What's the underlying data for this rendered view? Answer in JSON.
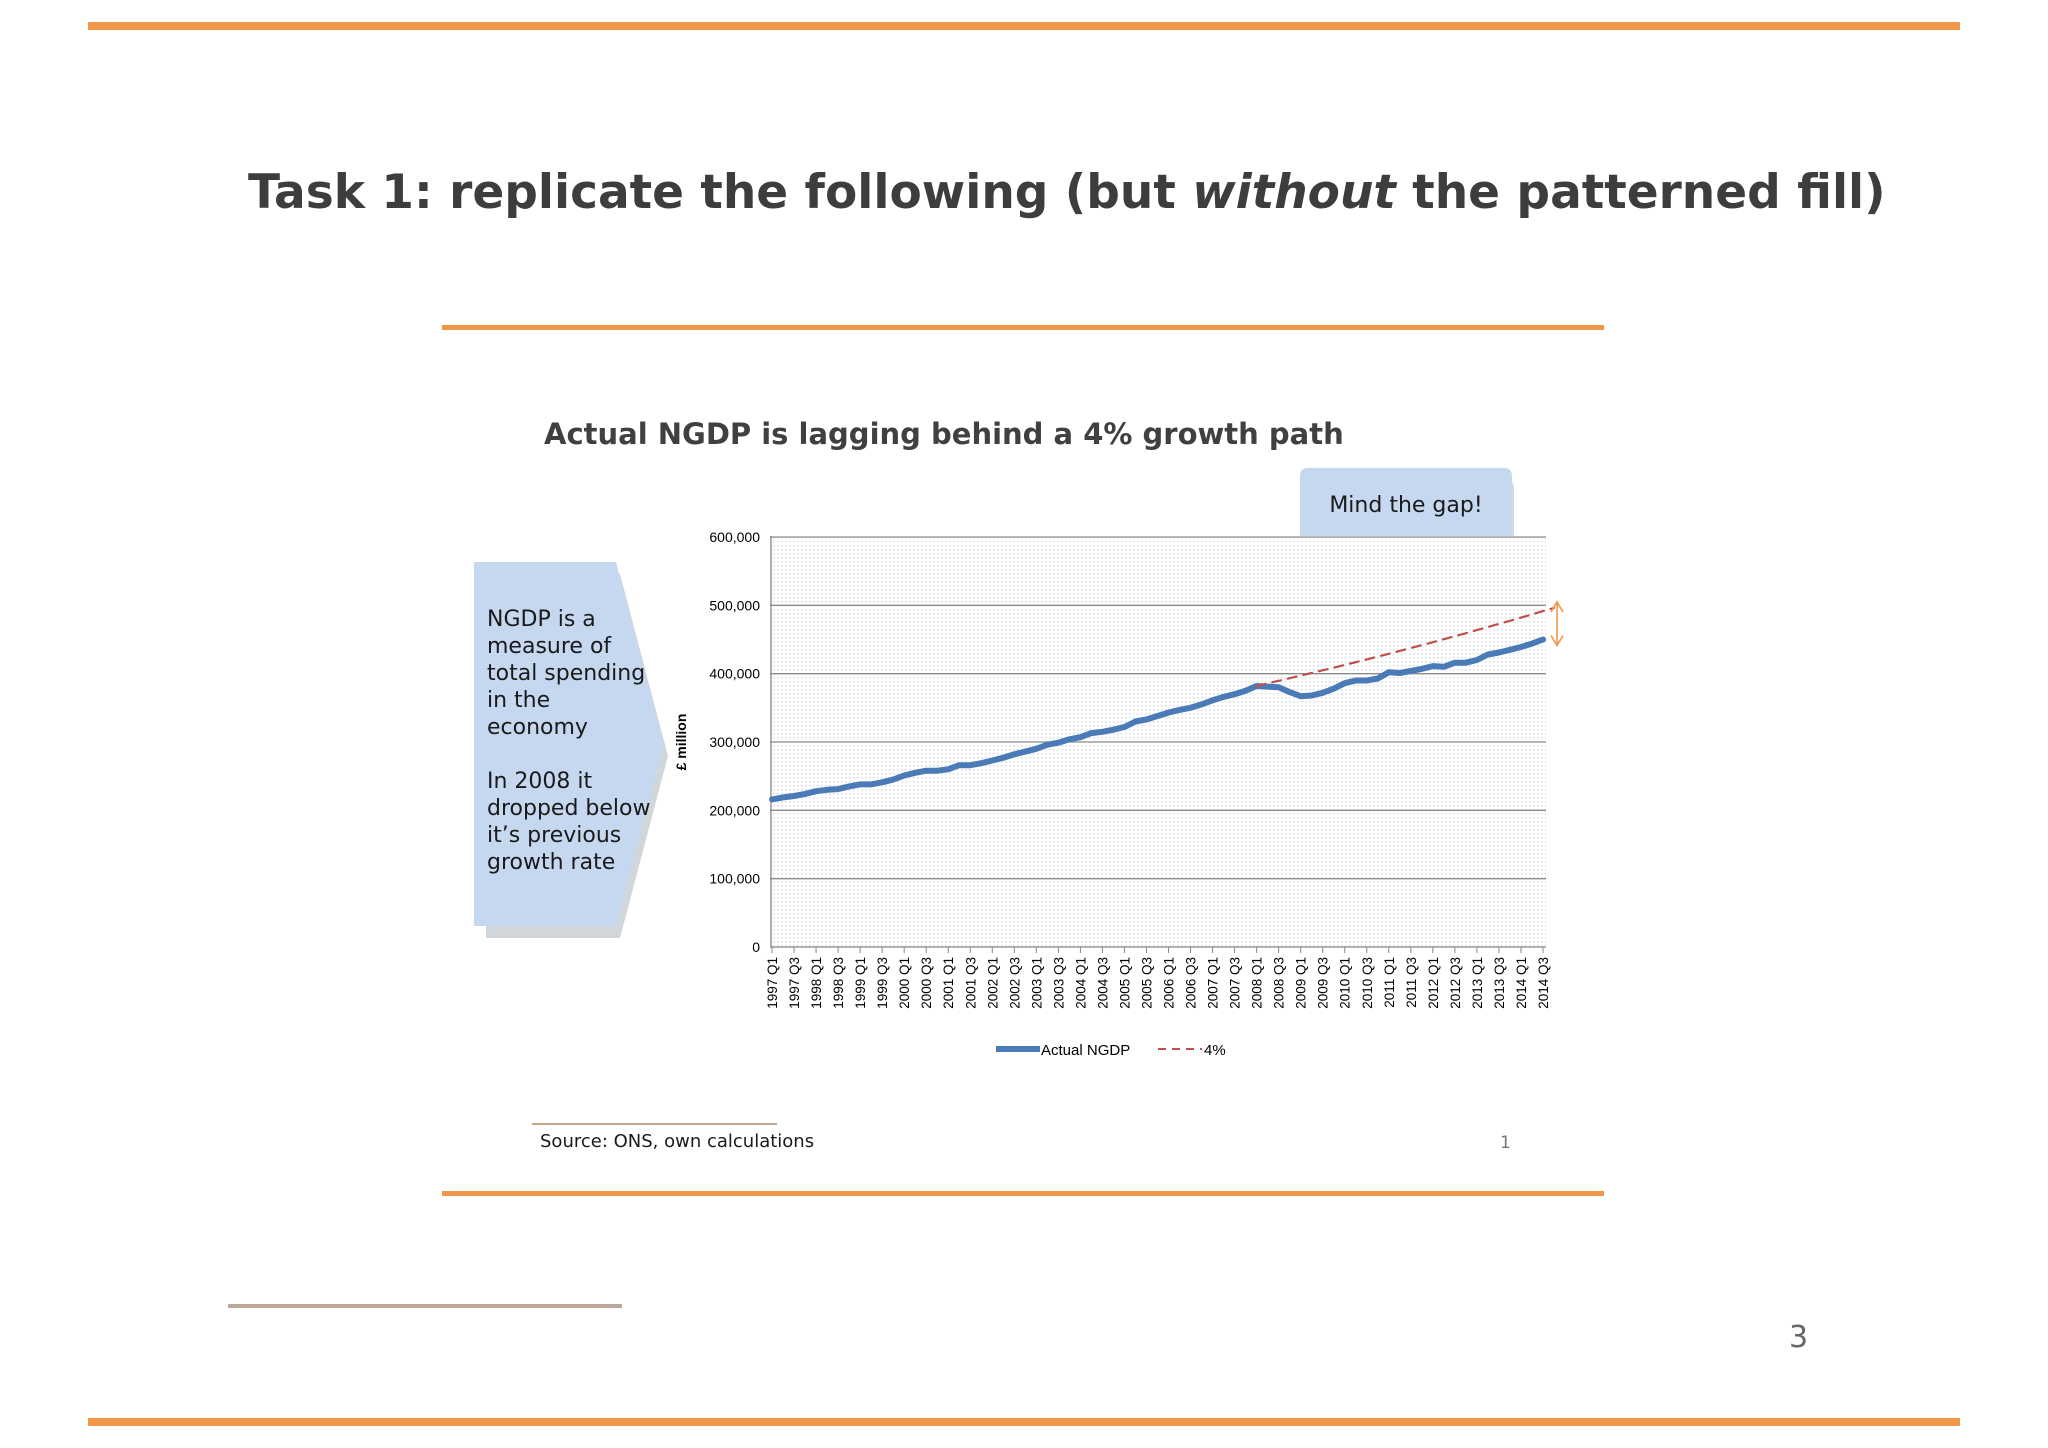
{
  "slide": {
    "title_pre": "Task 1: replicate the following (but ",
    "title_em": "without",
    "title_post": " the patterned fill)",
    "page_number": "3"
  },
  "side_box": {
    "lines": [
      "NGDP is a",
      "measure of",
      "total spending",
      "in the",
      "economy",
      "",
      "In 2008 it",
      "dropped below",
      "it’s previous",
      "growth rate"
    ],
    "color": "#c5d8f0"
  },
  "callout": {
    "text": "Mind the gap!",
    "color": "#c5d8f0"
  },
  "footer": {
    "source": "Source: ONS, own calculations",
    "inner_page": "1"
  },
  "colors": {
    "accent": "#f0974a",
    "actual_line": "#4a7bb7",
    "trend_line": "#c0504d",
    "gap_arrow": "#f0974a"
  },
  "chart_data": {
    "type": "line",
    "title": "Actual NGDP is lagging behind a 4% growth path",
    "xlabel": "",
    "ylabel": "£ million",
    "ylim": [
      0,
      600000
    ],
    "yticks": [
      0,
      100000,
      200000,
      300000,
      400000,
      500000,
      600000
    ],
    "ytick_labels": [
      "0",
      "100,000",
      "200,000",
      "300,000",
      "400,000",
      "500,000",
      "600,000"
    ],
    "grid": true,
    "legend_position": "bottom",
    "x_labels": [
      "1997 Q1",
      "1997 Q3",
      "1998 Q1",
      "1998 Q3",
      "1999 Q1",
      "1999 Q3",
      "2000 Q1",
      "2000 Q3",
      "2001 Q1",
      "2001 Q3",
      "2002 Q1",
      "2002 Q3",
      "2003 Q1",
      "2003 Q3",
      "2004 Q1",
      "2004 Q3",
      "2005 Q1",
      "2005 Q3",
      "2006 Q1",
      "2006 Q3",
      "2007 Q1",
      "2007 Q3",
      "2008 Q1",
      "2008 Q3",
      "2009 Q1",
      "2009 Q3",
      "2010 Q1",
      "2010 Q3",
      "2011 Q1",
      "2011 Q3",
      "2012 Q1",
      "2012 Q3",
      "2013 Q1",
      "2013 Q3",
      "2014 Q1",
      "2014 Q3"
    ],
    "series": [
      {
        "name": "Actual NGDP",
        "style": "solid",
        "x_start": "1997 Q1",
        "values": [
          216000,
          219000,
          221000,
          224000,
          228000,
          230000,
          231000,
          235000,
          238000,
          238000,
          241000,
          245000,
          251000,
          255000,
          258000,
          258000,
          260000,
          266000,
          266000,
          269000,
          273000,
          277000,
          282000,
          286000,
          290000,
          296000,
          299000,
          304000,
          307000,
          313000,
          315000,
          318000,
          322000,
          330000,
          333000,
          338000,
          343000,
          347000,
          350000,
          355000,
          361000,
          366000,
          370000,
          375000,
          382000,
          381000,
          380000,
          373000,
          367000,
          368000,
          372000,
          378000,
          386000,
          390000,
          390000,
          393000,
          402000,
          401000,
          404000,
          407000,
          411000,
          410000,
          416000,
          416000,
          420000,
          428000,
          431000,
          435000,
          439000,
          444000,
          450000
        ]
      },
      {
        "name": "4%",
        "style": "dashed",
        "x_start": "2008 Q1",
        "values": [
          382000,
          385700,
          389500,
          393300,
          397100,
          401000,
          404900,
          408800,
          412800,
          416800,
          420900,
          425000,
          429100,
          433300,
          437500,
          441800,
          446100,
          450400,
          454800,
          459200,
          463700,
          468200,
          472800,
          477400,
          482100,
          486800,
          491500,
          496200
        ]
      }
    ],
    "annotations": [
      "Mind the gap!"
    ]
  }
}
